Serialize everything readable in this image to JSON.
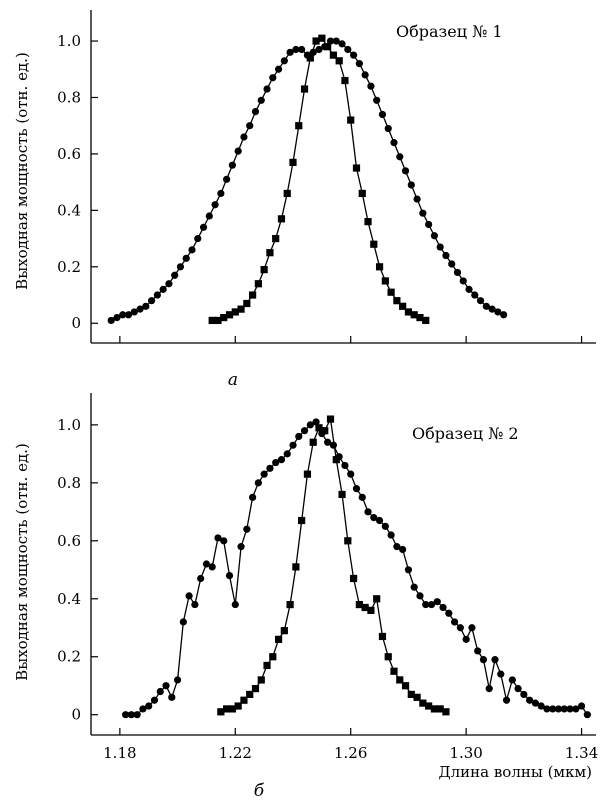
{
  "chart_data": [
    {
      "type": "line",
      "panel_label": "а",
      "annotation": "Образец № 1",
      "ylabel": "Выходная мощность (отн. ед.)",
      "xlabel": "",
      "xlim": [
        1.17,
        1.345
      ],
      "ylim": [
        -0.07,
        1.11
      ],
      "x_ticks": [
        1.18,
        1.22,
        1.26,
        1.3,
        1.34
      ],
      "x_tick_labels": [
        "",
        "",
        "",
        "",
        ""
      ],
      "y_ticks": [
        0,
        0.2,
        0.4,
        0.6,
        0.8,
        1.0
      ],
      "y_tick_labels": [
        "0",
        "0.2",
        "0.4",
        "0.6",
        "0.8",
        "1.0"
      ],
      "grid": false,
      "series": [
        {
          "marker": "circle",
          "x": [
            1.177,
            1.179,
            1.181,
            1.183,
            1.185,
            1.187,
            1.189,
            1.191,
            1.193,
            1.195,
            1.197,
            1.199,
            1.201,
            1.203,
            1.205,
            1.207,
            1.209,
            1.211,
            1.213,
            1.215,
            1.217,
            1.219,
            1.221,
            1.223,
            1.225,
            1.227,
            1.229,
            1.231,
            1.233,
            1.235,
            1.237,
            1.239,
            1.241,
            1.243,
            1.245,
            1.247,
            1.249,
            1.251,
            1.253,
            1.255,
            1.257,
            1.259,
            1.261,
            1.263,
            1.265,
            1.267,
            1.269,
            1.271,
            1.273,
            1.275,
            1.277,
            1.279,
            1.281,
            1.283,
            1.285,
            1.287,
            1.289,
            1.291,
            1.293,
            1.295,
            1.297,
            1.299,
            1.301,
            1.303,
            1.305,
            1.307,
            1.309,
            1.311,
            1.313
          ],
          "y": [
            0.01,
            0.02,
            0.03,
            0.03,
            0.04,
            0.05,
            0.06,
            0.08,
            0.1,
            0.12,
            0.14,
            0.17,
            0.2,
            0.23,
            0.26,
            0.3,
            0.34,
            0.38,
            0.42,
            0.46,
            0.51,
            0.56,
            0.61,
            0.66,
            0.7,
            0.75,
            0.79,
            0.83,
            0.87,
            0.9,
            0.93,
            0.96,
            0.97,
            0.97,
            0.95,
            0.96,
            0.97,
            0.98,
            1.0,
            1.0,
            0.99,
            0.97,
            0.95,
            0.92,
            0.88,
            0.84,
            0.79,
            0.74,
            0.69,
            0.64,
            0.59,
            0.54,
            0.49,
            0.44,
            0.39,
            0.35,
            0.31,
            0.27,
            0.24,
            0.21,
            0.18,
            0.15,
            0.12,
            0.1,
            0.08,
            0.06,
            0.05,
            0.04,
            0.03
          ]
        },
        {
          "marker": "square",
          "x": [
            1.212,
            1.214,
            1.216,
            1.218,
            1.22,
            1.222,
            1.224,
            1.226,
            1.228,
            1.23,
            1.232,
            1.234,
            1.236,
            1.238,
            1.24,
            1.242,
            1.244,
            1.246,
            1.248,
            1.25,
            1.252,
            1.254,
            1.256,
            1.258,
            1.26,
            1.262,
            1.264,
            1.266,
            1.268,
            1.27,
            1.272,
            1.274,
            1.276,
            1.278,
            1.28,
            1.282,
            1.284,
            1.286
          ],
          "y": [
            0.01,
            0.01,
            0.02,
            0.03,
            0.04,
            0.05,
            0.07,
            0.1,
            0.14,
            0.19,
            0.25,
            0.3,
            0.37,
            0.46,
            0.57,
            0.7,
            0.83,
            0.94,
            1.0,
            1.01,
            0.98,
            0.95,
            0.93,
            0.86,
            0.72,
            0.55,
            0.46,
            0.36,
            0.28,
            0.2,
            0.15,
            0.11,
            0.08,
            0.06,
            0.04,
            0.03,
            0.02,
            0.01
          ]
        }
      ]
    },
    {
      "type": "line",
      "panel_label": "б",
      "annotation": "Образец № 2",
      "ylabel": "Выходная мощность (отн. ед.)",
      "xlabel": "Длина волны (мкм)",
      "xlim": [
        1.17,
        1.345
      ],
      "ylim": [
        -0.07,
        1.11
      ],
      "x_ticks": [
        1.18,
        1.22,
        1.26,
        1.3,
        1.34
      ],
      "x_tick_labels": [
        "1.18",
        "1.22",
        "1.26",
        "1.30",
        "1.34"
      ],
      "y_ticks": [
        0,
        0.2,
        0.4,
        0.6,
        0.8,
        1.0
      ],
      "y_tick_labels": [
        "0",
        "0.2",
        "0.4",
        "0.6",
        "0.8",
        "1.0"
      ],
      "grid": false,
      "series": [
        {
          "marker": "circle",
          "x": [
            1.182,
            1.184,
            1.186,
            1.188,
            1.19,
            1.192,
            1.194,
            1.196,
            1.198,
            1.2,
            1.202,
            1.204,
            1.206,
            1.208,
            1.21,
            1.212,
            1.214,
            1.216,
            1.218,
            1.22,
            1.222,
            1.224,
            1.226,
            1.228,
            1.23,
            1.232,
            1.234,
            1.236,
            1.238,
            1.24,
            1.242,
            1.244,
            1.246,
            1.248,
            1.25,
            1.252,
            1.254,
            1.256,
            1.258,
            1.26,
            1.262,
            1.264,
            1.266,
            1.268,
            1.27,
            1.272,
            1.274,
            1.276,
            1.278,
            1.28,
            1.282,
            1.284,
            1.286,
            1.288,
            1.29,
            1.292,
            1.294,
            1.296,
            1.298,
            1.3,
            1.302,
            1.304,
            1.306,
            1.308,
            1.31,
            1.312,
            1.314,
            1.316,
            1.318,
            1.32,
            1.322,
            1.324,
            1.326,
            1.328,
            1.33,
            1.332,
            1.334,
            1.336,
            1.338,
            1.34,
            1.342
          ],
          "y": [
            0.0,
            0.0,
            0.0,
            0.02,
            0.03,
            0.05,
            0.08,
            0.1,
            0.06,
            0.12,
            0.32,
            0.41,
            0.38,
            0.47,
            0.52,
            0.51,
            0.61,
            0.6,
            0.48,
            0.38,
            0.58,
            0.64,
            0.75,
            0.8,
            0.83,
            0.85,
            0.87,
            0.88,
            0.9,
            0.93,
            0.96,
            0.98,
            1.0,
            1.01,
            0.97,
            0.94,
            0.93,
            0.89,
            0.86,
            0.83,
            0.78,
            0.75,
            0.7,
            0.68,
            0.67,
            0.65,
            0.62,
            0.58,
            0.57,
            0.5,
            0.44,
            0.41,
            0.38,
            0.38,
            0.39,
            0.37,
            0.35,
            0.32,
            0.3,
            0.26,
            0.3,
            0.22,
            0.19,
            0.09,
            0.19,
            0.14,
            0.05,
            0.12,
            0.09,
            0.07,
            0.05,
            0.04,
            0.03,
            0.02,
            0.02,
            0.02,
            0.02,
            0.02,
            0.02,
            0.03,
            0.0
          ]
        },
        {
          "marker": "square",
          "x": [
            1.215,
            1.217,
            1.219,
            1.221,
            1.223,
            1.225,
            1.227,
            1.229,
            1.231,
            1.233,
            1.235,
            1.237,
            1.239,
            1.241,
            1.243,
            1.245,
            1.247,
            1.249,
            1.251,
            1.253,
            1.255,
            1.257,
            1.259,
            1.261,
            1.263,
            1.265,
            1.267,
            1.269,
            1.271,
            1.273,
            1.275,
            1.277,
            1.279,
            1.281,
            1.283,
            1.285,
            1.287,
            1.289,
            1.291,
            1.293
          ],
          "y": [
            0.01,
            0.02,
            0.02,
            0.03,
            0.05,
            0.07,
            0.09,
            0.12,
            0.17,
            0.2,
            0.26,
            0.29,
            0.38,
            0.51,
            0.67,
            0.83,
            0.94,
            0.99,
            0.98,
            1.02,
            0.88,
            0.76,
            0.6,
            0.47,
            0.38,
            0.37,
            0.36,
            0.4,
            0.27,
            0.2,
            0.15,
            0.12,
            0.1,
            0.07,
            0.06,
            0.04,
            0.03,
            0.02,
            0.02,
            0.01
          ]
        }
      ]
    }
  ]
}
